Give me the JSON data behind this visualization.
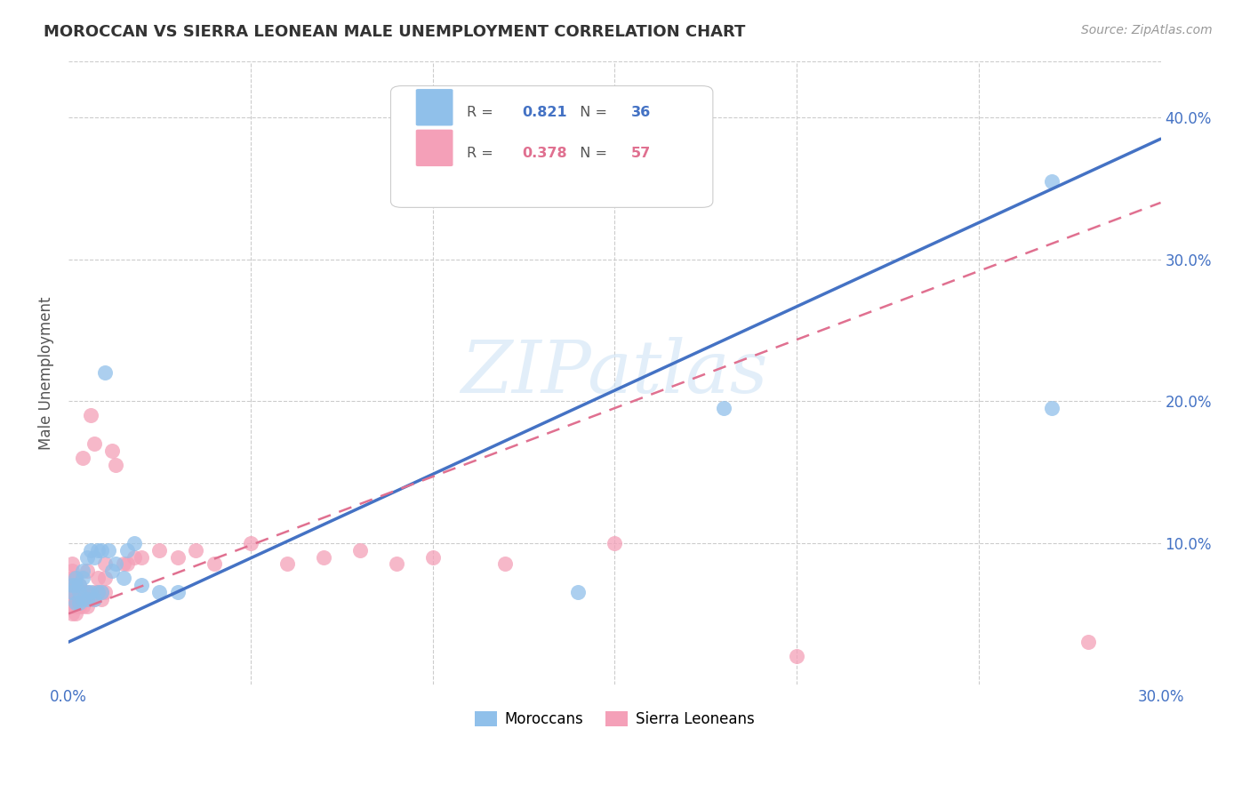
{
  "title": "MOROCCAN VS SIERRA LEONEAN MALE UNEMPLOYMENT CORRELATION CHART",
  "source": "Source: ZipAtlas.com",
  "ylabel": "Male Unemployment",
  "xlim": [
    0.0,
    0.3
  ],
  "ylim": [
    0.0,
    0.44
  ],
  "yticks": [
    0.0,
    0.1,
    0.2,
    0.3,
    0.4
  ],
  "ytick_right_labels": [
    "",
    "10.0%",
    "20.0%",
    "30.0%",
    "40.0%"
  ],
  "xticks": [
    0.0,
    0.05,
    0.1,
    0.15,
    0.2,
    0.25,
    0.3
  ],
  "xtick_labels": [
    "0.0%",
    "",
    "",
    "",
    "",
    "",
    "30.0%"
  ],
  "moroccan_color": "#90C0EA",
  "sierra_leonean_color": "#F4A0B8",
  "moroccan_line_color": "#4472C4",
  "sierra_leonean_line_color": "#E07090",
  "R_moroccan": 0.821,
  "N_moroccan": 36,
  "R_sierra": 0.378,
  "N_sierra": 57,
  "watermark": "ZIPatlas",
  "moroccan_x": [
    0.001,
    0.001,
    0.002,
    0.002,
    0.002,
    0.003,
    0.003,
    0.003,
    0.004,
    0.004,
    0.004,
    0.005,
    0.005,
    0.005,
    0.006,
    0.006,
    0.007,
    0.007,
    0.008,
    0.008,
    0.009,
    0.009,
    0.01,
    0.011,
    0.012,
    0.013,
    0.015,
    0.016,
    0.018,
    0.02,
    0.025,
    0.03,
    0.14,
    0.18,
    0.27,
    0.27
  ],
  "moroccan_y": [
    0.065,
    0.07,
    0.058,
    0.07,
    0.075,
    0.058,
    0.065,
    0.07,
    0.06,
    0.075,
    0.08,
    0.06,
    0.065,
    0.09,
    0.065,
    0.095,
    0.06,
    0.09,
    0.065,
    0.095,
    0.065,
    0.095,
    0.22,
    0.095,
    0.08,
    0.085,
    0.075,
    0.095,
    0.1,
    0.07,
    0.065,
    0.065,
    0.065,
    0.195,
    0.195,
    0.355
  ],
  "sierra_x": [
    0.001,
    0.001,
    0.001,
    0.001,
    0.001,
    0.001,
    0.001,
    0.001,
    0.002,
    0.002,
    0.002,
    0.002,
    0.002,
    0.002,
    0.003,
    0.003,
    0.003,
    0.003,
    0.004,
    0.004,
    0.004,
    0.004,
    0.005,
    0.005,
    0.005,
    0.006,
    0.006,
    0.007,
    0.007,
    0.007,
    0.008,
    0.008,
    0.009,
    0.009,
    0.01,
    0.01,
    0.01,
    0.012,
    0.013,
    0.015,
    0.016,
    0.018,
    0.02,
    0.025,
    0.03,
    0.035,
    0.04,
    0.05,
    0.06,
    0.07,
    0.08,
    0.09,
    0.1,
    0.12,
    0.15,
    0.2,
    0.28
  ],
  "sierra_y": [
    0.05,
    0.055,
    0.06,
    0.065,
    0.07,
    0.075,
    0.08,
    0.085,
    0.05,
    0.055,
    0.06,
    0.065,
    0.07,
    0.075,
    0.055,
    0.06,
    0.065,
    0.07,
    0.055,
    0.06,
    0.065,
    0.16,
    0.055,
    0.065,
    0.08,
    0.06,
    0.19,
    0.06,
    0.065,
    0.17,
    0.065,
    0.075,
    0.06,
    0.065,
    0.065,
    0.075,
    0.085,
    0.165,
    0.155,
    0.085,
    0.085,
    0.09,
    0.09,
    0.095,
    0.09,
    0.095,
    0.085,
    0.1,
    0.085,
    0.09,
    0.095,
    0.085,
    0.09,
    0.085,
    0.1,
    0.02,
    0.03
  ]
}
